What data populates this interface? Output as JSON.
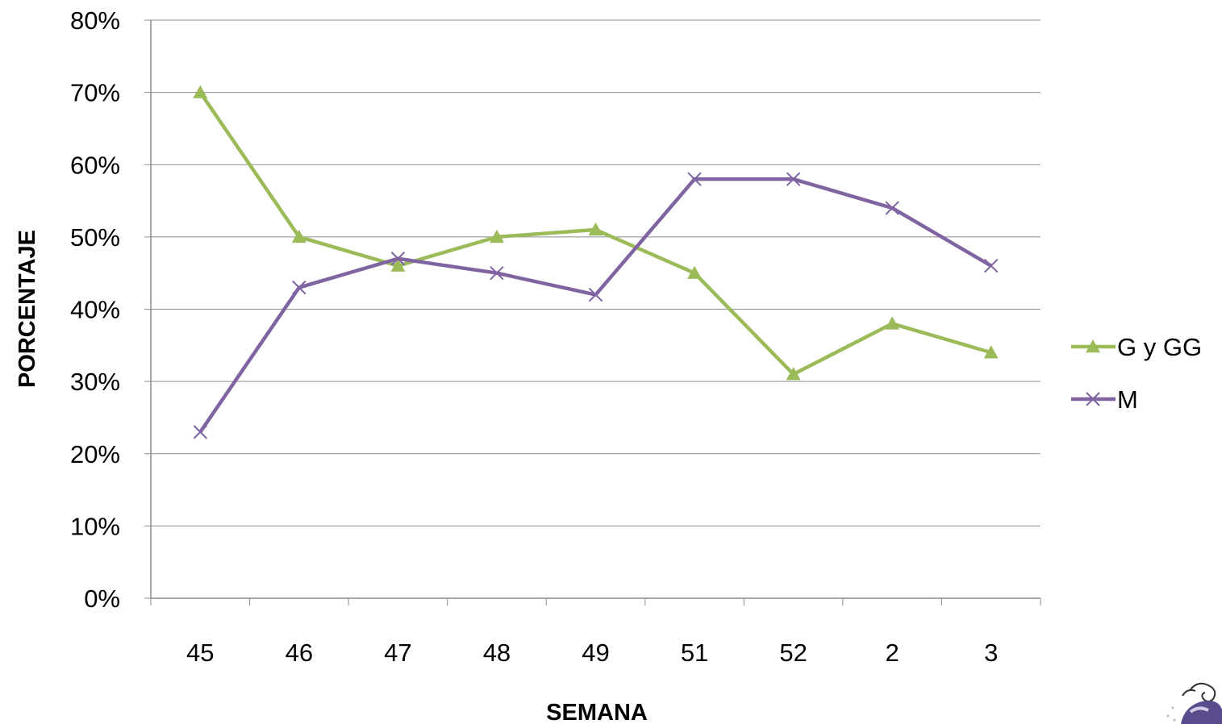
{
  "chart_data": {
    "type": "line",
    "title": "",
    "xlabel": "SEMANA",
    "ylabel": "PORCENTAJE",
    "categories": [
      "45",
      "46",
      "47",
      "48",
      "49",
      "51",
      "52",
      "2",
      "3"
    ],
    "ylim": [
      0,
      0.8
    ],
    "yticks": [
      0,
      0.1,
      0.2,
      0.3,
      0.4,
      0.5,
      0.6,
      0.7,
      0.8
    ],
    "ytick_labels": [
      "0%",
      "10%",
      "20%",
      "30%",
      "40%",
      "50%",
      "60%",
      "70%",
      "80%"
    ],
    "grid": "horizontal",
    "legend_position": "right",
    "series": [
      {
        "name": "G y GG",
        "color": "#9bbb59",
        "marker": "triangle",
        "values": [
          0.7,
          0.5,
          0.46,
          0.5,
          0.51,
          0.45,
          0.31,
          0.38,
          0.34
        ]
      },
      {
        "name": "M",
        "color": "#8064a2",
        "marker": "x",
        "values": [
          0.23,
          0.43,
          0.47,
          0.45,
          0.42,
          0.58,
          0.58,
          0.54,
          0.46
        ]
      }
    ]
  },
  "corner_image": {
    "icon": "cartoon-mascot-icon"
  }
}
